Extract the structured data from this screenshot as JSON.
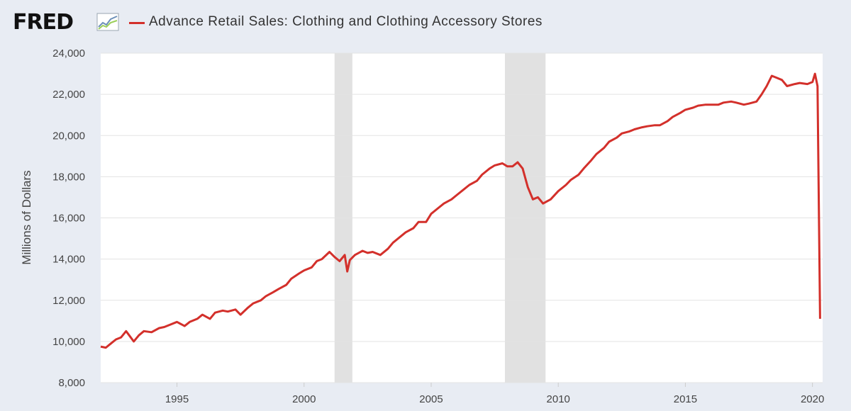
{
  "header": {
    "logo_text": "FRED",
    "series_title": "Advance Retail Sales: Clothing and Clothing Accessory Stores"
  },
  "colors": {
    "line": "#d3302b",
    "recession": "#e1e1e1",
    "background": "#e8ecf3"
  },
  "chart_data": {
    "type": "line",
    "title": "Advance Retail Sales: Clothing and Clothing Accessory Stores",
    "ylabel": "Millions of Dollars",
    "xlabel": "",
    "ylim": [
      8000,
      24000
    ],
    "xlim": [
      1992.0,
      2020.4
    ],
    "y_ticks": [
      "8,000",
      "10,000",
      "12,000",
      "14,000",
      "16,000",
      "18,000",
      "20,000",
      "22,000",
      "24,000"
    ],
    "x_ticks": [
      "1995",
      "2000",
      "2005",
      "2010",
      "2015",
      "2020"
    ],
    "grid": true,
    "recessions": [
      [
        2001.2,
        2001.9
      ],
      [
        2007.9,
        2009.5
      ]
    ],
    "series": [
      {
        "name": "Advance Retail Sales: Clothing and Clothing Accessory Stores",
        "x": [
          1992.0,
          1992.2,
          1992.4,
          1992.6,
          1992.8,
          1993.0,
          1993.3,
          1993.5,
          1993.7,
          1994.0,
          1994.3,
          1994.5,
          1994.7,
          1995.0,
          1995.3,
          1995.5,
          1995.8,
          1996.0,
          1996.3,
          1996.5,
          1996.8,
          1997.0,
          1997.3,
          1997.5,
          1997.8,
          1998.0,
          1998.3,
          1998.5,
          1998.8,
          1999.0,
          1999.3,
          1999.5,
          1999.8,
          2000.0,
          2000.3,
          2000.5,
          2000.7,
          2001.0,
          2001.2,
          2001.4,
          2001.6,
          2001.7,
          2001.8,
          2002.0,
          2002.3,
          2002.5,
          2002.7,
          2003.0,
          2003.3,
          2003.5,
          2003.7,
          2004.0,
          2004.3,
          2004.5,
          2004.8,
          2005.0,
          2005.3,
          2005.5,
          2005.8,
          2006.0,
          2006.3,
          2006.5,
          2006.8,
          2007.0,
          2007.3,
          2007.5,
          2007.8,
          2008.0,
          2008.2,
          2008.4,
          2008.6,
          2008.8,
          2009.0,
          2009.2,
          2009.4,
          2009.7,
          2010.0,
          2010.3,
          2010.5,
          2010.8,
          2011.0,
          2011.3,
          2011.5,
          2011.8,
          2012.0,
          2012.3,
          2012.5,
          2012.8,
          2013.0,
          2013.3,
          2013.5,
          2013.8,
          2014.0,
          2014.3,
          2014.5,
          2014.8,
          2015.0,
          2015.3,
          2015.5,
          2015.8,
          2016.0,
          2016.3,
          2016.5,
          2016.8,
          2017.0,
          2017.3,
          2017.5,
          2017.8,
          2018.0,
          2018.2,
          2018.4,
          2018.6,
          2018.8,
          2019.0,
          2019.3,
          2019.5,
          2019.8,
          2020.0,
          2020.1,
          2020.2,
          2020.3
        ],
        "values": [
          9750,
          9700,
          9900,
          10100,
          10200,
          10500,
          10000,
          10300,
          10500,
          10450,
          10650,
          10700,
          10800,
          10950,
          10750,
          10950,
          11100,
          11300,
          11100,
          11400,
          11500,
          11450,
          11550,
          11300,
          11650,
          11850,
          12000,
          12200,
          12400,
          12550,
          12750,
          13050,
          13300,
          13450,
          13600,
          13900,
          14000,
          14350,
          14100,
          13900,
          14200,
          13400,
          13950,
          14200,
          14400,
          14300,
          14350,
          14200,
          14500,
          14800,
          15000,
          15300,
          15500,
          15800,
          15800,
          16200,
          16500,
          16700,
          16900,
          17100,
          17400,
          17600,
          17800,
          18100,
          18400,
          18550,
          18650,
          18500,
          18500,
          18700,
          18400,
          17500,
          16900,
          17000,
          16700,
          16900,
          17300,
          17600,
          17850,
          18100,
          18400,
          18800,
          19100,
          19400,
          19700,
          19900,
          20100,
          20200,
          20300,
          20400,
          20450,
          20500,
          20500,
          20700,
          20900,
          21100,
          21250,
          21350,
          21450,
          21500,
          21500,
          21500,
          21600,
          21650,
          21600,
          21500,
          21550,
          21650,
          22000,
          22400,
          22900,
          22800,
          22700,
          22400,
          22500,
          22550,
          22500,
          22600,
          23000,
          22400,
          11100
        ]
      }
    ]
  }
}
